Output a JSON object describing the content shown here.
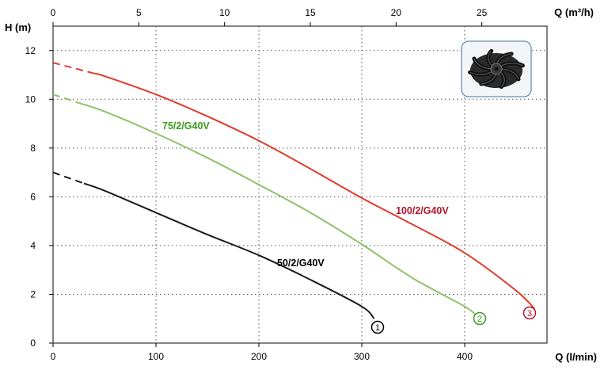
{
  "chart_data": {
    "type": "line",
    "xlabel_bottom": "Q (l/min)",
    "xlabel_top": "Q (m³/h)",
    "ylabel": "H (m)",
    "x_bottom_range": [
      0,
      480
    ],
    "x_bottom_ticks": [
      0,
      100,
      200,
      300,
      400
    ],
    "x_top_range": [
      0,
      28.8
    ],
    "x_top_ticks": [
      0,
      5,
      10,
      15,
      20,
      25
    ],
    "y_range": [
      0,
      13
    ],
    "y_ticks": [
      0,
      2,
      4,
      6,
      8,
      10,
      12
    ],
    "grid": true,
    "series": [
      {
        "name": "50/2/G40V",
        "marker": "1",
        "color": "#1a1a1a",
        "dashed_until_x": 30,
        "x": [
          0,
          20,
          50,
          100,
          150,
          200,
          250,
          300,
          312
        ],
        "y": [
          7.0,
          6.7,
          6.25,
          5.35,
          4.45,
          3.6,
          2.6,
          1.5,
          1.0
        ]
      },
      {
        "name": "75/2/G40V",
        "marker": "2",
        "color": "#8fc16a",
        "dashed_until_x": 25,
        "x": [
          0,
          50,
          100,
          150,
          200,
          250,
          300,
          350,
          400,
          412
        ],
        "y": [
          10.2,
          9.5,
          8.6,
          7.6,
          6.5,
          5.35,
          4.05,
          2.65,
          1.5,
          1.1
        ]
      },
      {
        "name": "100/2/G40V",
        "marker": "3",
        "color": "#e03a2c",
        "dashed_until_x": 40,
        "x": [
          0,
          50,
          100,
          150,
          200,
          250,
          300,
          350,
          400,
          450,
          468
        ],
        "y": [
          11.5,
          10.95,
          10.2,
          9.3,
          8.3,
          7.15,
          5.95,
          4.85,
          3.7,
          2.15,
          1.4
        ]
      }
    ],
    "labels": [
      {
        "text": "50/2/G40V",
        "color": "#000000"
      },
      {
        "text": "75/2/G40V",
        "color": "#3d9a1f"
      },
      {
        "text": "100/2/G40V",
        "color": "#b5142c"
      }
    ]
  },
  "impeller_image": {
    "description_icon": "impeller-icon"
  }
}
